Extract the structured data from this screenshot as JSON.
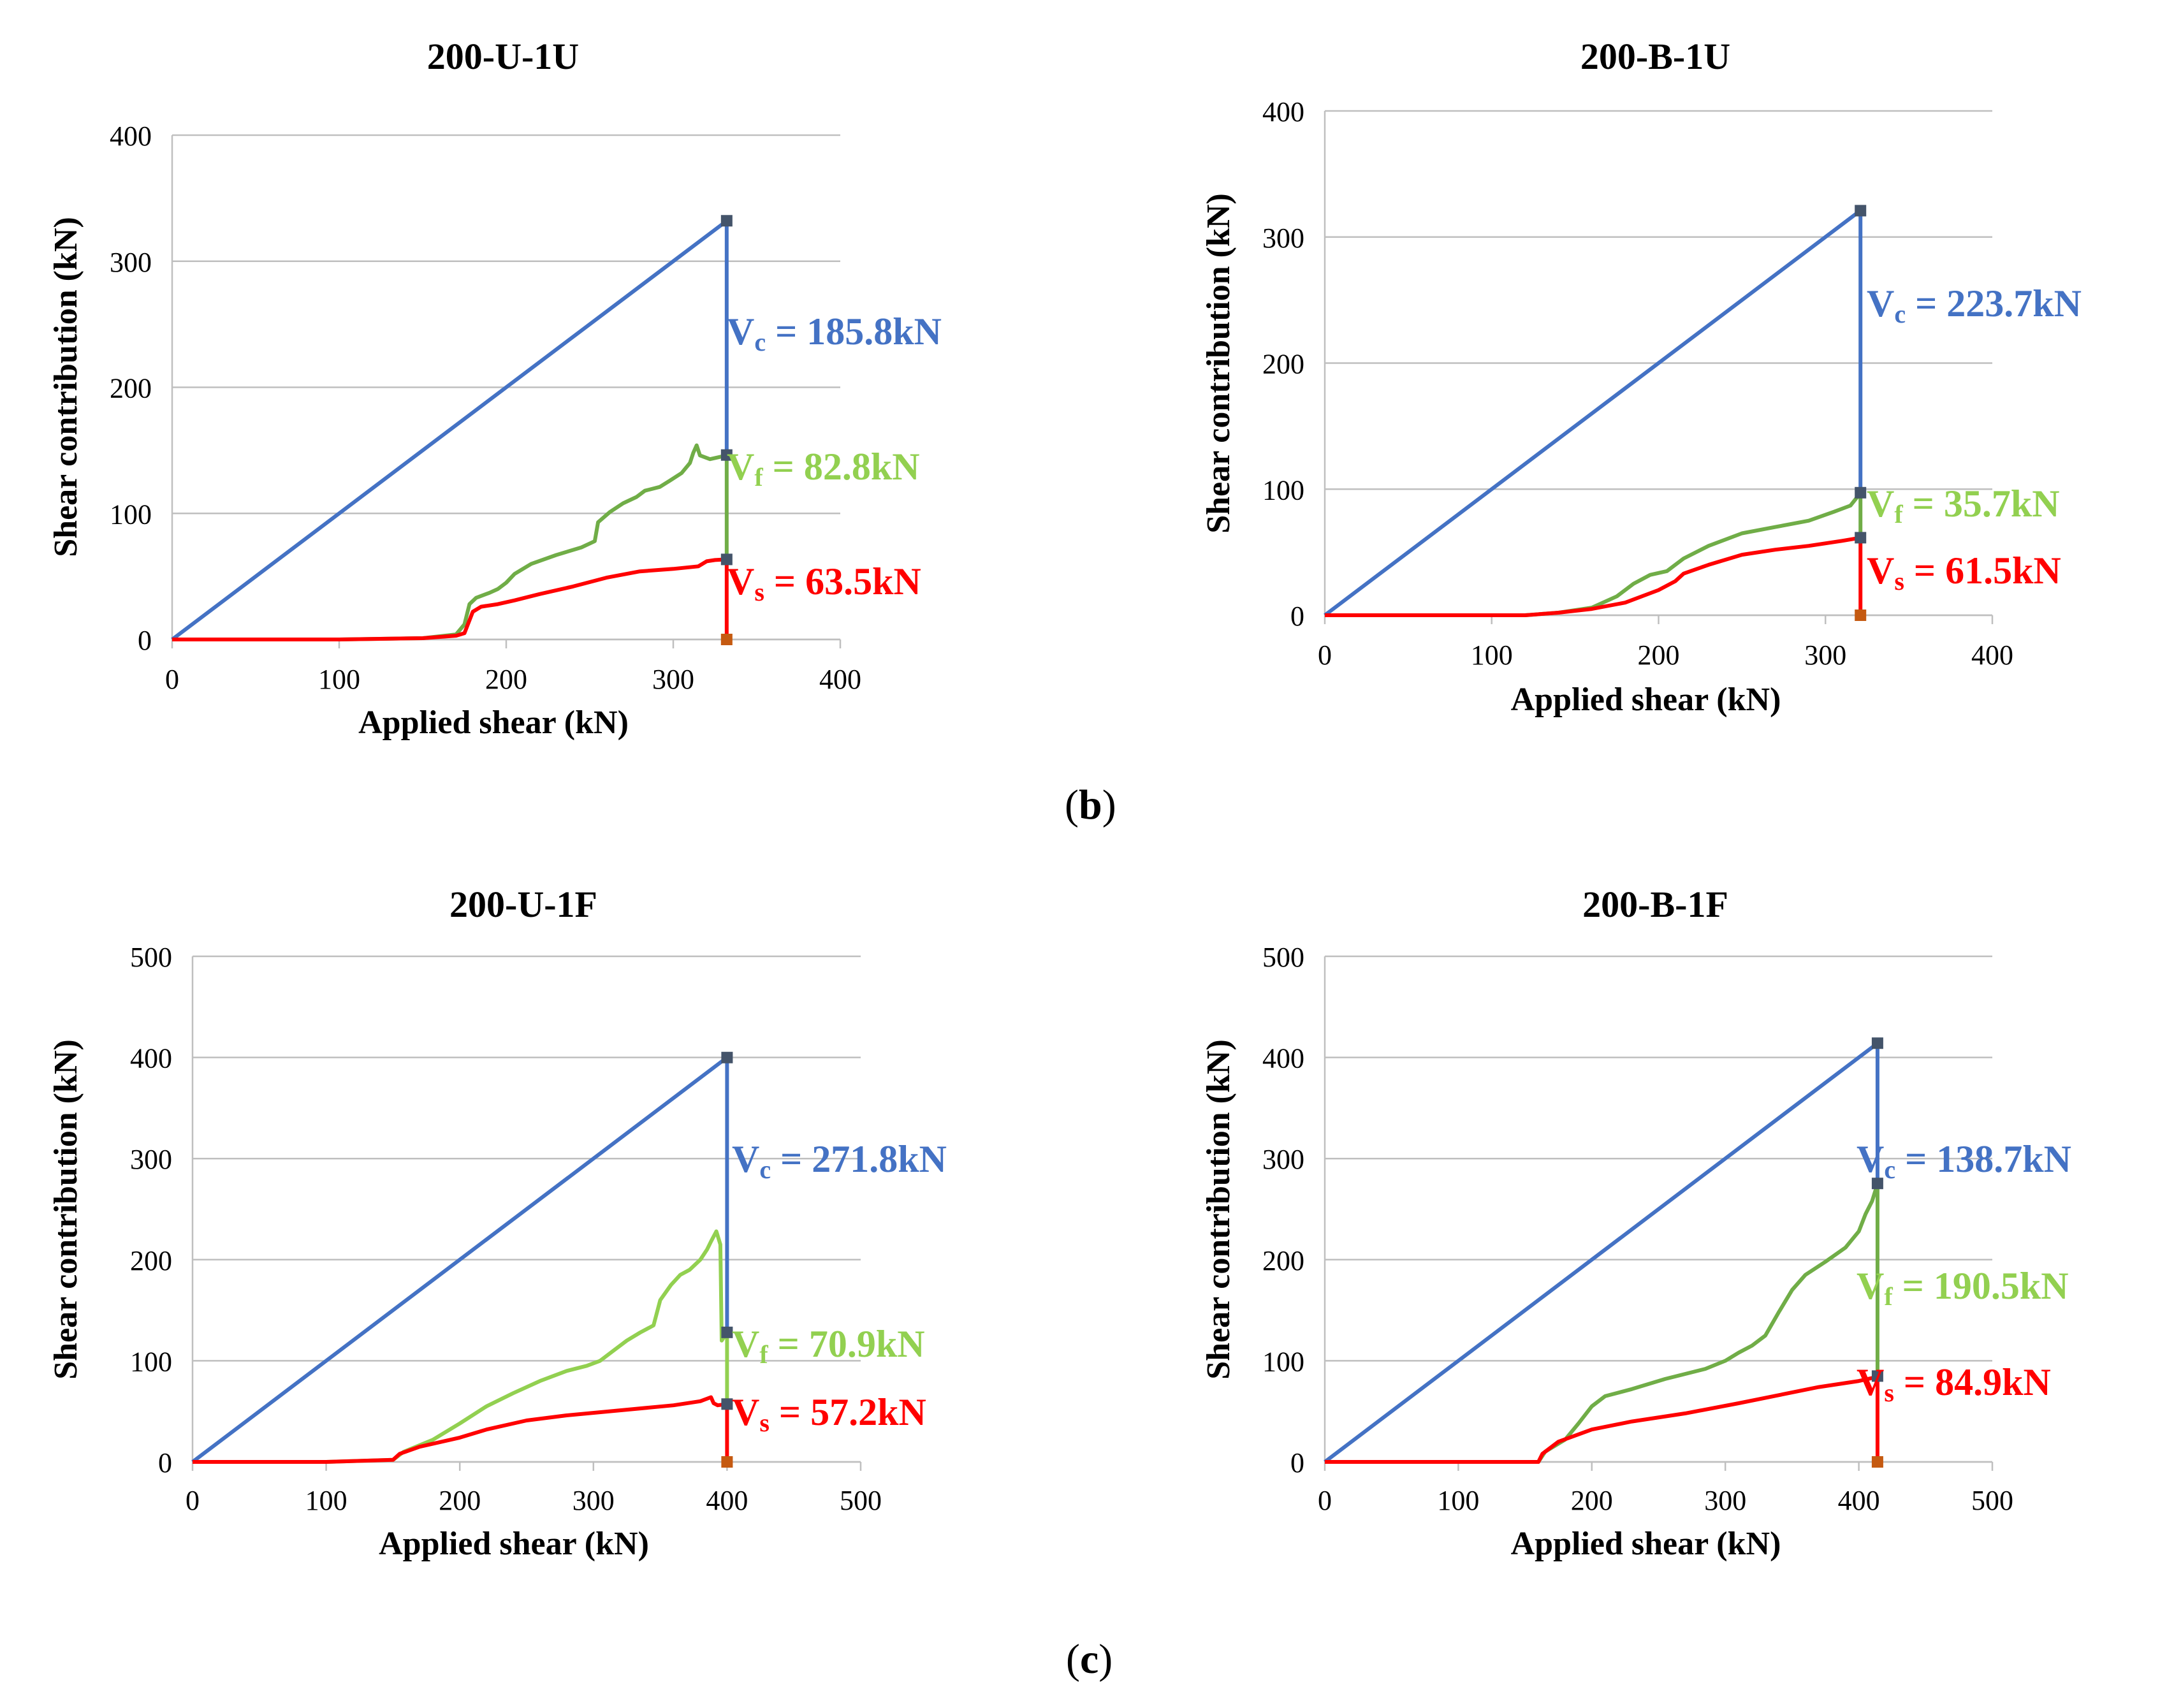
{
  "panel_labels": [
    {
      "open": "(",
      "letter": "b",
      "close": ")"
    },
    {
      "open": "(",
      "letter": "c",
      "close": ")"
    }
  ],
  "colors": {
    "Vc": "#4472C4",
    "Vf_dark": "#70AD47",
    "Vf_light": "#92D050",
    "Vs": "#FF0000",
    "marker": "#44546A",
    "marker_base": "#C55A11",
    "grid": "#BFBFBF"
  },
  "chart_data": [
    {
      "type": "line",
      "title": "200-U-1U",
      "xlabel": "Applied shear (kN)",
      "ylabel": "Shear contribution (kN)",
      "xlim": [
        0,
        400
      ],
      "ylim": [
        0,
        400
      ],
      "xticks": [
        0,
        100,
        200,
        300,
        400
      ],
      "yticks": [
        0,
        100,
        200,
        300,
        400
      ],
      "ultimate": 332,
      "stack": {
        "Vs": 63.5,
        "Vf": 82.8,
        "Vc": 185.8
      },
      "labels": {
        "Vc": {
          "sym": "V",
          "sub": "c",
          "text": " = 185.8kN"
        },
        "Vf": {
          "sym": "V",
          "sub": "f",
          "text": " = 82.8kN"
        },
        "Vs": {
          "sym": "V",
          "sub": "s",
          "text": " = 63.5kN"
        }
      },
      "series": [
        {
          "name": "Vc",
          "color": "#4472C4",
          "points": [
            [
              0,
              0
            ],
            [
              332,
              332
            ]
          ]
        },
        {
          "name": "Vf",
          "color": "#70AD47",
          "points": [
            [
              0,
              0
            ],
            [
              100,
              0
            ],
            [
              150,
              1
            ],
            [
              170,
              4
            ],
            [
              175,
              12
            ],
            [
              178,
              28
            ],
            [
              182,
              33
            ],
            [
              190,
              37
            ],
            [
              195,
              40
            ],
            [
              200,
              45
            ],
            [
              205,
              52
            ],
            [
              215,
              60
            ],
            [
              230,
              67
            ],
            [
              245,
              73
            ],
            [
              253,
              78
            ],
            [
              255,
              93
            ],
            [
              262,
              101
            ],
            [
              270,
              108
            ],
            [
              278,
              113
            ],
            [
              283,
              118
            ],
            [
              292,
              121
            ],
            [
              298,
              126
            ],
            [
              305,
              132
            ],
            [
              310,
              140
            ],
            [
              312,
              148
            ],
            [
              314,
              154
            ],
            [
              316,
              146
            ],
            [
              322,
              143
            ],
            [
              332,
              146
            ]
          ]
        },
        {
          "name": "Vs",
          "color": "#FF0000",
          "points": [
            [
              0,
              0
            ],
            [
              100,
              0
            ],
            [
              150,
              1
            ],
            [
              170,
              3
            ],
            [
              175,
              5
            ],
            [
              180,
              22
            ],
            [
              185,
              26
            ],
            [
              195,
              28
            ],
            [
              205,
              31
            ],
            [
              220,
              36
            ],
            [
              240,
              42
            ],
            [
              260,
              49
            ],
            [
              280,
              54
            ],
            [
              300,
              56
            ],
            [
              315,
              58
            ],
            [
              320,
              62
            ],
            [
              325,
              63
            ],
            [
              332,
              63.5
            ]
          ]
        }
      ]
    },
    {
      "type": "line",
      "title": "200-B-1U",
      "xlabel": "Applied shear (kN)",
      "ylabel": "Shear contribution (kN)",
      "xlim": [
        0,
        400
      ],
      "ylim": [
        0,
        400
      ],
      "xticks": [
        0,
        100,
        200,
        300,
        400
      ],
      "yticks": [
        0,
        100,
        200,
        300,
        400
      ],
      "ultimate": 321,
      "stack": {
        "Vs": 61.5,
        "Vf": 35.7,
        "Vc": 223.7
      },
      "labels": {
        "Vc": {
          "sym": "V",
          "sub": "c",
          "text": " = 223.7kN"
        },
        "Vf": {
          "sym": "V",
          "sub": "f",
          "text": " = 35.7kN"
        },
        "Vs": {
          "sym": "V",
          "sub": "s",
          "text": " = 61.5kN"
        }
      },
      "series": [
        {
          "name": "Vc",
          "color": "#4472C4",
          "points": [
            [
              0,
              0
            ],
            [
              321,
              321
            ]
          ]
        },
        {
          "name": "Vf",
          "color": "#70AD47",
          "points": [
            [
              0,
              0
            ],
            [
              120,
              0
            ],
            [
              140,
              2
            ],
            [
              160,
              6
            ],
            [
              175,
              15
            ],
            [
              185,
              25
            ],
            [
              195,
              32
            ],
            [
              205,
              35
            ],
            [
              215,
              45
            ],
            [
              230,
              55
            ],
            [
              250,
              65
            ],
            [
              270,
              70
            ],
            [
              290,
              75
            ],
            [
              305,
              82
            ],
            [
              315,
              87
            ],
            [
              321,
              97
            ]
          ]
        },
        {
          "name": "Vs",
          "color": "#FF0000",
          "points": [
            [
              0,
              0
            ],
            [
              120,
              0
            ],
            [
              140,
              2
            ],
            [
              160,
              5
            ],
            [
              180,
              10
            ],
            [
              200,
              20
            ],
            [
              210,
              27
            ],
            [
              215,
              33
            ],
            [
              230,
              40
            ],
            [
              250,
              48
            ],
            [
              270,
              52
            ],
            [
              290,
              55
            ],
            [
              310,
              59
            ],
            [
              321,
              61.5
            ]
          ]
        }
      ]
    },
    {
      "type": "line",
      "title": "200-U-1F",
      "xlabel": "Applied shear (kN)",
      "ylabel": "Shear contribution (kN)",
      "xlim": [
        0,
        500
      ],
      "ylim": [
        0,
        500
      ],
      "xticks": [
        0,
        100,
        200,
        300,
        400,
        500
      ],
      "yticks": [
        0,
        100,
        200,
        300,
        400,
        500
      ],
      "ultimate": 400,
      "stack": {
        "Vs": 57.2,
        "Vf": 70.9,
        "Vc": 271.8
      },
      "labels": {
        "Vc": {
          "sym": "V",
          "sub": "c",
          "text": " = 271.8kN"
        },
        "Vf": {
          "sym": "V",
          "sub": "f",
          "text": " = 70.9kN"
        },
        "Vs": {
          "sym": "V",
          "sub": "s",
          "text": " = 57.2kN"
        }
      },
      "series": [
        {
          "name": "Vc",
          "color": "#4472C4",
          "points": [
            [
              0,
              0
            ],
            [
              400,
              400
            ]
          ]
        },
        {
          "name": "Vf",
          "color": "#92D050",
          "points": [
            [
              0,
              0
            ],
            [
              100,
              0
            ],
            [
              150,
              2
            ],
            [
              158,
              10
            ],
            [
              180,
              22
            ],
            [
              200,
              38
            ],
            [
              220,
              55
            ],
            [
              240,
              68
            ],
            [
              260,
              80
            ],
            [
              280,
              90
            ],
            [
              295,
              95
            ],
            [
              305,
              100
            ],
            [
              315,
              110
            ],
            [
              325,
              120
            ],
            [
              335,
              128
            ],
            [
              345,
              135
            ],
            [
              350,
              160
            ],
            [
              358,
              175
            ],
            [
              365,
              185
            ],
            [
              372,
              190
            ],
            [
              380,
              200
            ],
            [
              385,
              210
            ],
            [
              388,
              218
            ],
            [
              392,
              228
            ],
            [
              395,
              215
            ],
            [
              396,
              120
            ],
            [
              400,
              128
            ]
          ]
        },
        {
          "name": "Vs",
          "color": "#FF0000",
          "points": [
            [
              0,
              0
            ],
            [
              100,
              0
            ],
            [
              150,
              2
            ],
            [
              155,
              8
            ],
            [
              170,
              15
            ],
            [
              200,
              24
            ],
            [
              220,
              32
            ],
            [
              250,
              41
            ],
            [
              280,
              46
            ],
            [
              320,
              51
            ],
            [
              360,
              56
            ],
            [
              380,
              60
            ],
            [
              388,
              64
            ],
            [
              390,
              58
            ],
            [
              393,
              56
            ],
            [
              400,
              57.2
            ]
          ]
        }
      ]
    },
    {
      "type": "line",
      "title": "200-B-1F",
      "xlabel": "Applied shear (kN)",
      "ylabel": "Shear contribution (kN)",
      "xlim": [
        0,
        500
      ],
      "ylim": [
        0,
        500
      ],
      "xticks": [
        0,
        100,
        200,
        300,
        400,
        500
      ],
      "yticks": [
        0,
        100,
        200,
        300,
        400,
        500
      ],
      "ultimate": 414,
      "stack": {
        "Vs": 84.9,
        "Vf": 190.5,
        "Vc": 138.7
      },
      "labels": {
        "Vc": {
          "sym": "V",
          "sub": "c",
          "text": " = 138.7kN"
        },
        "Vf": {
          "sym": "V",
          "sub": "f",
          "text": " = 190.5kN"
        },
        "Vs": {
          "sym": "V",
          "sub": "s",
          "text": " = 84.9kN"
        }
      },
      "series": [
        {
          "name": "Vc",
          "color": "#4472C4",
          "points": [
            [
              0,
              0
            ],
            [
              414,
              414
            ]
          ]
        },
        {
          "name": "Vf",
          "color": "#70AD47",
          "points": [
            [
              0,
              0
            ],
            [
              100,
              0
            ],
            [
              160,
              0
            ],
            [
              165,
              10
            ],
            [
              180,
              22
            ],
            [
              190,
              38
            ],
            [
              200,
              55
            ],
            [
              210,
              65
            ],
            [
              230,
              72
            ],
            [
              255,
              82
            ],
            [
              270,
              87
            ],
            [
              285,
              92
            ],
            [
              300,
              100
            ],
            [
              310,
              108
            ],
            [
              320,
              115
            ],
            [
              330,
              125
            ],
            [
              340,
              148
            ],
            [
              350,
              170
            ],
            [
              360,
              185
            ],
            [
              375,
              198
            ],
            [
              390,
              212
            ],
            [
              395,
              220
            ],
            [
              400,
              228
            ],
            [
              405,
              245
            ],
            [
              410,
              258
            ],
            [
              414,
              275
            ]
          ]
        },
        {
          "name": "Vs",
          "color": "#FF0000",
          "points": [
            [
              0,
              0
            ],
            [
              100,
              0
            ],
            [
              160,
              0
            ],
            [
              163,
              8
            ],
            [
              175,
              20
            ],
            [
              200,
              32
            ],
            [
              230,
              40
            ],
            [
              270,
              48
            ],
            [
              310,
              58
            ],
            [
              340,
              66
            ],
            [
              370,
              74
            ],
            [
              400,
              80
            ],
            [
              410,
              83
            ],
            [
              414,
              84.9
            ]
          ]
        }
      ]
    }
  ]
}
